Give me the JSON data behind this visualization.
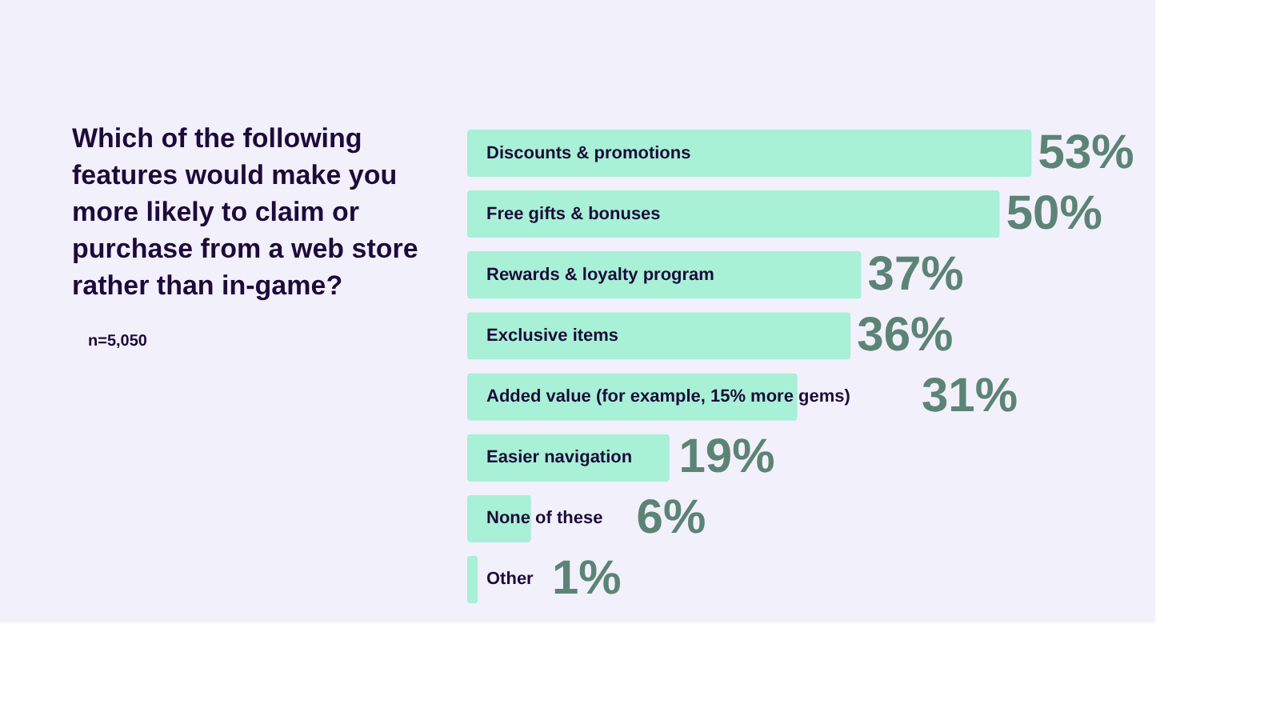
{
  "chart_data": {
    "type": "bar",
    "orientation": "horizontal",
    "title": "Which of the following features would make you more likely to claim or purchase from a web store rather than in-game?",
    "annotations": [
      "n=5,050"
    ],
    "categories": [
      "Discounts & promotions",
      "Free gifts & bonuses",
      "Rewards & loyalty program",
      "Exclusive items",
      "Added value (for example, 15% more gems)",
      "Easier navigation",
      "None of these",
      "Other"
    ],
    "values": [
      53,
      50,
      37,
      36,
      31,
      19,
      6,
      1
    ],
    "value_labels": [
      "53%",
      "50%",
      "37%",
      "36%",
      "31%",
      "19%",
      "6%",
      "1%"
    ],
    "color": "#a8f0d6"
  }
}
